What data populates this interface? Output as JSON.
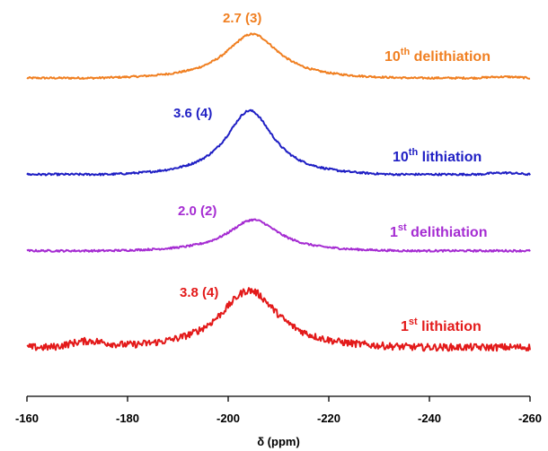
{
  "chart_data": {
    "type": "line",
    "xlabel": "δ (ppm)",
    "ylabel": "",
    "xlim": [
      -160,
      -260
    ],
    "x_ticks": [
      "-160",
      "-180",
      "-200",
      "-220",
      "-240",
      "-260"
    ],
    "grid": false,
    "legend": "none",
    "series": [
      {
        "key": "delith10",
        "name_main": "10",
        "name_sup": "th",
        "name_rest": " delithiation",
        "annotation": "2.7 (3)",
        "color": "#f07f21",
        "peak_center": -204.8,
        "peak_width": 6.5,
        "peak_height": 1.0,
        "noise": 0.02,
        "points": [
          [
            -160,
            0.0
          ],
          [
            -180,
            0.04
          ],
          [
            -195,
            0.3
          ],
          [
            -200,
            0.72
          ],
          [
            -204.8,
            1.0
          ],
          [
            -210,
            0.64
          ],
          [
            -215,
            0.28
          ],
          [
            -230,
            0.04
          ],
          [
            -255,
            0.06
          ],
          [
            -260,
            0.0
          ]
        ]
      },
      {
        "key": "lith10",
        "name_main": "10",
        "name_sup": "th",
        "name_rest": " lithiation",
        "annotation": "3.6 (4)",
        "color": "#1f1fc4",
        "peak_center": -204.3,
        "peak_width": 5.8,
        "peak_height": 1.0,
        "noise": 0.015,
        "points": [
          [
            -160,
            0.0
          ],
          [
            -185,
            0.04
          ],
          [
            -197,
            0.35
          ],
          [
            -201,
            0.78
          ],
          [
            -204.3,
            1.0
          ],
          [
            -208,
            0.7
          ],
          [
            -213,
            0.25
          ],
          [
            -225,
            0.03
          ],
          [
            -255,
            0.03
          ],
          [
            -260,
            0.02
          ]
        ]
      },
      {
        "key": "delith1",
        "name_main": "1",
        "name_sup": "st",
        "name_rest": " delithiation",
        "annotation": "2.0 (2)",
        "color": "#a52cd2",
        "peak_center": -205.0,
        "peak_width": 6.2,
        "peak_height": 1.0,
        "noise": 0.03,
        "points": [
          [
            -160,
            0.0
          ],
          [
            -185,
            0.05
          ],
          [
            -197,
            0.38
          ],
          [
            -201,
            0.76
          ],
          [
            -205,
            1.0
          ],
          [
            -209,
            0.72
          ],
          [
            -215,
            0.26
          ],
          [
            -230,
            0.04
          ],
          [
            -260,
            0.0
          ]
        ]
      },
      {
        "key": "lith1",
        "name_main": "1",
        "name_sup": "st",
        "name_rest": " lithiation",
        "annotation": "3.8 (4)",
        "color": "#e31a1a",
        "peak_center": -204.2,
        "peak_width": 7.0,
        "peak_height": 1.0,
        "noise": 0.06,
        "points": [
          [
            -160,
            0.02
          ],
          [
            -172,
            0.13
          ],
          [
            -180,
            0.04
          ],
          [
            -193,
            0.18
          ],
          [
            -198,
            0.55
          ],
          [
            -204.2,
            1.0
          ],
          [
            -210,
            0.58
          ],
          [
            -216,
            0.16
          ],
          [
            -230,
            0.02
          ],
          [
            -260,
            0.0
          ]
        ]
      }
    ]
  }
}
